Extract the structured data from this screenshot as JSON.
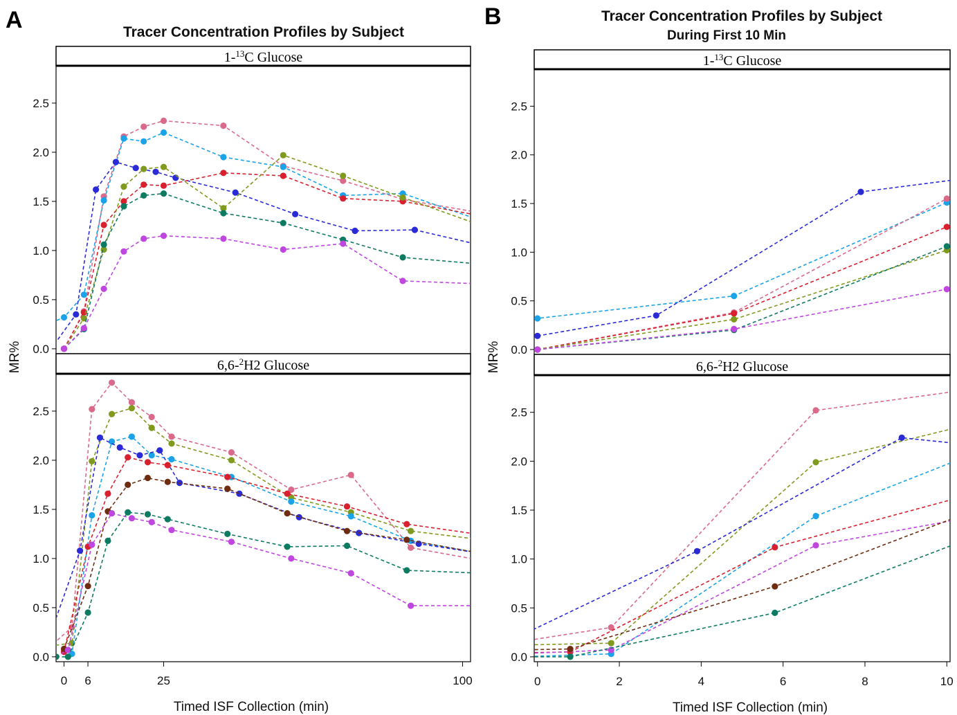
{
  "colors": {
    "pink": "#d96a8a",
    "skyblue": "#1aa3e8",
    "blue": "#2a2ad6",
    "red": "#d8202f",
    "olive": "#7f9a1e",
    "teal": "#0d7a62",
    "violet": "#c046e0",
    "brown": "#6e2d10"
  },
  "chart_data": [
    {
      "type": "line",
      "panel_letter": "A",
      "title": "Tracer Concentration Profiles by Subject",
      "subtitle": "",
      "xlabel": "Timed ISF Collection (min)",
      "ylabel": "MR%",
      "xlim": [
        -2,
        102
      ],
      "xticks": [
        0,
        6,
        25,
        100
      ],
      "facets": [
        {
          "label_pre": "1-",
          "label_sup": "13",
          "label_post": "C Glucose",
          "ylim": [
            -0.05,
            2.88
          ],
          "yticks": [
            0.0,
            0.5,
            1.0,
            1.5,
            2.0,
            2.5
          ],
          "series": [
            {
              "color": "pink",
              "x": [
                0,
                5,
                10,
                15,
                20,
                25,
                40,
                55,
                70,
                85,
                105
              ],
              "y": [
                0.0,
                0.38,
                1.55,
                2.16,
                2.26,
                2.32,
                2.27,
                1.86,
                1.71,
                1.52,
                1.38
              ]
            },
            {
              "color": "skyblue",
              "x": [
                -10,
                0,
                5,
                10,
                15,
                20,
                25,
                40,
                55,
                70,
                85,
                105
              ],
              "y": [
                0.15,
                0.32,
                0.55,
                1.51,
                2.14,
                2.11,
                2.2,
                1.95,
                1.85,
                1.56,
                1.58,
                1.3
              ]
            },
            {
              "color": "blue",
              "x": [
                -5,
                3,
                8,
                13,
                18,
                23,
                28,
                43,
                58,
                73,
                88,
                105
              ],
              "y": [
                -0.1,
                0.35,
                1.62,
                1.9,
                1.84,
                1.8,
                1.74,
                1.59,
                1.37,
                1.2,
                1.21,
                1.05
              ]
            },
            {
              "color": "red",
              "x": [
                0,
                5,
                10,
                15,
                20,
                25,
                40,
                55,
                70,
                85,
                105
              ],
              "y": [
                0.0,
                0.37,
                1.26,
                1.5,
                1.67,
                1.66,
                1.79,
                1.76,
                1.53,
                1.5,
                1.35
              ]
            },
            {
              "color": "olive",
              "x": [
                0,
                5,
                10,
                15,
                20,
                25,
                40,
                55,
                70,
                85,
                105
              ],
              "y": [
                0.0,
                0.31,
                1.01,
                1.65,
                1.83,
                1.85,
                1.43,
                1.97,
                1.76,
                1.54,
                1.25
              ]
            },
            {
              "color": "teal",
              "x": [
                0,
                5,
                10,
                15,
                20,
                25,
                40,
                55,
                70,
                85,
                105
              ],
              "y": [
                0.0,
                0.2,
                1.06,
                1.45,
                1.56,
                1.58,
                1.38,
                1.28,
                1.11,
                0.93,
                0.86
              ]
            },
            {
              "color": "violet",
              "x": [
                0,
                5,
                10,
                15,
                20,
                25,
                40,
                55,
                70,
                85,
                105
              ],
              "y": [
                0.0,
                0.21,
                0.61,
                0.99,
                1.12,
                1.15,
                1.12,
                1.01,
                1.07,
                0.69,
                0.66
              ]
            }
          ]
        },
        {
          "label_pre": "6,6-",
          "label_sup": "2",
          "label_post": "H2 Glucose",
          "ylim": [
            -0.05,
            2.88
          ],
          "yticks": [
            0.0,
            0.5,
            1.0,
            1.5,
            2.0,
            2.5
          ],
          "series": [
            {
              "color": "pink",
              "x": [
                -5,
                2,
                7,
                12,
                17,
                22,
                27,
                42,
                57,
                72,
                87,
                105
              ],
              "y": [
                0.05,
                0.3,
                2.52,
                2.79,
                2.59,
                2.44,
                2.24,
                2.08,
                1.7,
                1.85,
                1.11,
                0.98
              ]
            },
            {
              "color": "olive",
              "x": [
                -5,
                2,
                7,
                12,
                17,
                22,
                27,
                42,
                57,
                72,
                87,
                105
              ],
              "y": [
                0.1,
                0.14,
                1.99,
                2.47,
                2.53,
                2.33,
                2.17,
                2.0,
                1.62,
                1.47,
                1.28,
                1.19
              ]
            },
            {
              "color": "skyblue",
              "x": [
                0,
                2,
                7,
                12,
                17,
                22,
                27,
                42,
                57,
                72,
                87,
                105
              ],
              "y": [
                0.05,
                0.03,
                1.44,
                2.19,
                2.24,
                2.05,
                2.01,
                1.83,
                1.58,
                1.43,
                1.18,
                1.05
              ]
            },
            {
              "color": "blue",
              "x": [
                -5,
                4,
                9,
                14,
                19,
                24,
                29,
                44,
                59,
                74,
                89,
                105
              ],
              "y": [
                0.05,
                1.08,
                2.23,
                2.13,
                2.05,
                2.1,
                1.77,
                1.66,
                1.42,
                1.26,
                1.15,
                1.05
              ]
            },
            {
              "color": "red",
              "x": [
                0,
                6,
                11,
                16,
                21,
                26,
                41,
                56,
                71,
                86,
                105
              ],
              "y": [
                0.05,
                1.12,
                1.66,
                2.03,
                1.98,
                1.95,
                1.83,
                1.66,
                1.53,
                1.35,
                1.24
              ]
            },
            {
              "color": "brown",
              "x": [
                0,
                6,
                11,
                16,
                21,
                26,
                41,
                56,
                71,
                86,
                105
              ],
              "y": [
                0.08,
                0.72,
                1.48,
                1.75,
                1.82,
                1.78,
                1.71,
                1.46,
                1.28,
                1.19,
                1.05
              ]
            },
            {
              "color": "violet",
              "x": [
                -2,
                1,
                7,
                12,
                17,
                22,
                27,
                42,
                57,
                72,
                87,
                105
              ],
              "y": [
                0.0,
                0.07,
                1.14,
                1.46,
                1.41,
                1.37,
                1.29,
                1.17,
                1.0,
                0.85,
                0.52,
                0.52
              ]
            },
            {
              "color": "teal",
              "x": [
                -2,
                1,
                6,
                11,
                16,
                21,
                26,
                41,
                56,
                71,
                86,
                105
              ],
              "y": [
                0.0,
                0.0,
                0.45,
                1.18,
                1.47,
                1.45,
                1.4,
                1.25,
                1.12,
                1.13,
                0.88,
                0.85
              ]
            }
          ]
        }
      ]
    },
    {
      "type": "line",
      "panel_letter": "B",
      "title": "Tracer Concentration Profiles by Subject",
      "subtitle": "During First 10 Min",
      "xlabel": "Timed ISF Collection (min)",
      "ylabel": "MR%",
      "xlim": [
        -0.08,
        10.08
      ],
      "xticks": [
        0,
        2,
        4,
        6,
        8,
        10
      ],
      "facets": [
        {
          "label_pre": "1-",
          "label_sup": "13",
          "label_post": "C Glucose",
          "ylim": [
            -0.05,
            2.88
          ],
          "yticks": [
            0.0,
            0.5,
            1.0,
            1.5,
            2.0,
            2.5
          ],
          "series": [
            {
              "color": "skyblue",
              "x": [
                -0.5,
                0,
                4.8,
                10,
                10.5
              ],
              "y": [
                0.3,
                0.32,
                0.55,
                1.51,
                1.6
              ]
            },
            {
              "color": "blue",
              "x": [
                0,
                2.9,
                7.9,
                10.5
              ],
              "y": [
                0.14,
                0.35,
                1.62,
                1.76
              ]
            },
            {
              "color": "pink",
              "x": [
                0,
                4.8,
                10,
                10.5
              ],
              "y": [
                0.0,
                0.38,
                1.55,
                1.65
              ]
            },
            {
              "color": "red",
              "x": [
                0,
                4.8,
                10,
                10.5
              ],
              "y": [
                0.0,
                0.37,
                1.26,
                1.3
              ]
            },
            {
              "color": "olive",
              "x": [
                0,
                4.8,
                10,
                10.5
              ],
              "y": [
                0.0,
                0.31,
                1.02,
                1.12
              ]
            },
            {
              "color": "teal",
              "x": [
                0,
                4.8,
                10,
                10.5
              ],
              "y": [
                0.0,
                0.2,
                1.06,
                1.14
              ]
            },
            {
              "color": "violet",
              "x": [
                0,
                4.8,
                10,
                10.5
              ],
              "y": [
                0.0,
                0.21,
                0.62,
                0.7
              ]
            }
          ]
        },
        {
          "label_pre": "6,6-",
          "label_sup": "2",
          "label_post": "H2 Glucose",
          "ylim": [
            -0.05,
            2.88
          ],
          "yticks": [
            0.0,
            0.5,
            1.0,
            1.5,
            2.0,
            2.5
          ],
          "series": [
            {
              "color": "pink",
              "x": [
                -0.5,
                1.8,
                6.8,
                10.5
              ],
              "y": [
                0.15,
                0.3,
                2.52,
                2.73
              ]
            },
            {
              "color": "olive",
              "x": [
                -0.5,
                1.8,
                6.8,
                10.5
              ],
              "y": [
                0.12,
                0.14,
                1.99,
                2.37
              ]
            },
            {
              "color": "blue",
              "x": [
                -0.5,
                3.9,
                8.9,
                10.5
              ],
              "y": [
                0.2,
                1.08,
                2.24,
                2.17
              ]
            },
            {
              "color": "skyblue",
              "x": [
                -0.5,
                1.8,
                6.8,
                10.5
              ],
              "y": [
                0.0,
                0.03,
                1.44,
                2.05
              ]
            },
            {
              "color": "red",
              "x": [
                -0.5,
                0.8,
                5.8,
                10.5
              ],
              "y": [
                0.04,
                0.05,
                1.12,
                1.65
              ]
            },
            {
              "color": "violet",
              "x": [
                -0.5,
                1.8,
                6.8,
                10.5
              ],
              "y": [
                0.03,
                0.07,
                1.14,
                1.42
              ]
            },
            {
              "color": "brown",
              "x": [
                -0.5,
                0.8,
                5.8,
                10.5
              ],
              "y": [
                0.07,
                0.08,
                0.72,
                1.47
              ]
            },
            {
              "color": "teal",
              "x": [
                -0.5,
                0.8,
                5.8,
                10.5
              ],
              "y": [
                0.0,
                0.0,
                0.45,
                1.2
              ]
            }
          ]
        }
      ]
    }
  ]
}
